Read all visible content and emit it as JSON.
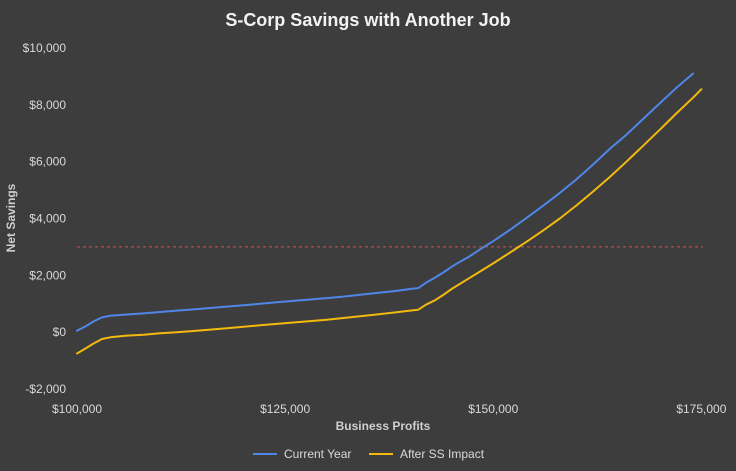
{
  "chart_data": {
    "type": "line",
    "title": "S-Corp Savings with Another Job",
    "xlabel": "Business Profits",
    "ylabel": "Net Savings",
    "xlim": [
      100000,
      177000
    ],
    "ylim": [
      -2000,
      10000
    ],
    "x_ticks": [
      100000,
      125000,
      150000,
      175000
    ],
    "x_tick_labels": [
      "$100,000",
      "$125,000",
      "$150,000",
      "$175,000"
    ],
    "y_ticks": [
      -2000,
      0,
      2000,
      4000,
      6000,
      8000,
      10000
    ],
    "y_tick_labels": [
      "-$2,000",
      "$0",
      "$2,000",
      "$4,000",
      "$6,000",
      "$8,000",
      "$10,000"
    ],
    "grid": false,
    "legend_position": "bottom",
    "reference_line": {
      "y": 3000,
      "color": "#e04a4a",
      "style": "dashed"
    },
    "series": [
      {
        "name": "Current Year",
        "color": "#4f86e8",
        "x": [
          100000,
          101000,
          102000,
          103000,
          104000,
          106000,
          108000,
          110000,
          112000,
          114000,
          116000,
          118000,
          120000,
          122000,
          124000,
          126000,
          128000,
          130000,
          132000,
          134000,
          136000,
          138000,
          140000,
          141000,
          142000,
          143000,
          144000,
          145000,
          146000,
          147000,
          148000,
          149000,
          150000,
          152000,
          154000,
          156000,
          158000,
          160000,
          162000,
          164000,
          166000,
          168000,
          170000,
          172000,
          174000
        ],
        "values": [
          50,
          200,
          380,
          520,
          580,
          620,
          660,
          710,
          760,
          800,
          850,
          900,
          950,
          1000,
          1050,
          1100,
          1150,
          1200,
          1250,
          1320,
          1380,
          1440,
          1520,
          1550,
          1750,
          1920,
          2100,
          2300,
          2480,
          2640,
          2830,
          3020,
          3200,
          3600,
          4020,
          4450,
          4900,
          5380,
          5900,
          6450,
          6950,
          7500,
          8050,
          8600,
          9100
        ]
      },
      {
        "name": "After SS Impact",
        "color": "#f2b90f",
        "x": [
          100000,
          101000,
          102000,
          103000,
          104000,
          106000,
          108000,
          110000,
          112000,
          114000,
          116000,
          118000,
          120000,
          122000,
          124000,
          126000,
          128000,
          130000,
          132000,
          134000,
          136000,
          138000,
          140000,
          141000,
          142000,
          143000,
          144000,
          145000,
          146000,
          147000,
          148000,
          149000,
          150000,
          152000,
          154000,
          156000,
          158000,
          160000,
          162000,
          164000,
          166000,
          168000,
          170000,
          172000,
          174000,
          175000
        ],
        "values": [
          -750,
          -580,
          -400,
          -240,
          -180,
          -120,
          -90,
          -40,
          0,
          40,
          90,
          140,
          190,
          240,
          290,
          340,
          390,
          440,
          500,
          560,
          620,
          690,
          760,
          790,
          980,
          1120,
          1310,
          1520,
          1700,
          1880,
          2060,
          2240,
          2420,
          2800,
          3180,
          3580,
          4000,
          4460,
          4950,
          5460,
          6000,
          6560,
          7120,
          7700,
          8250,
          8550
        ]
      }
    ]
  }
}
